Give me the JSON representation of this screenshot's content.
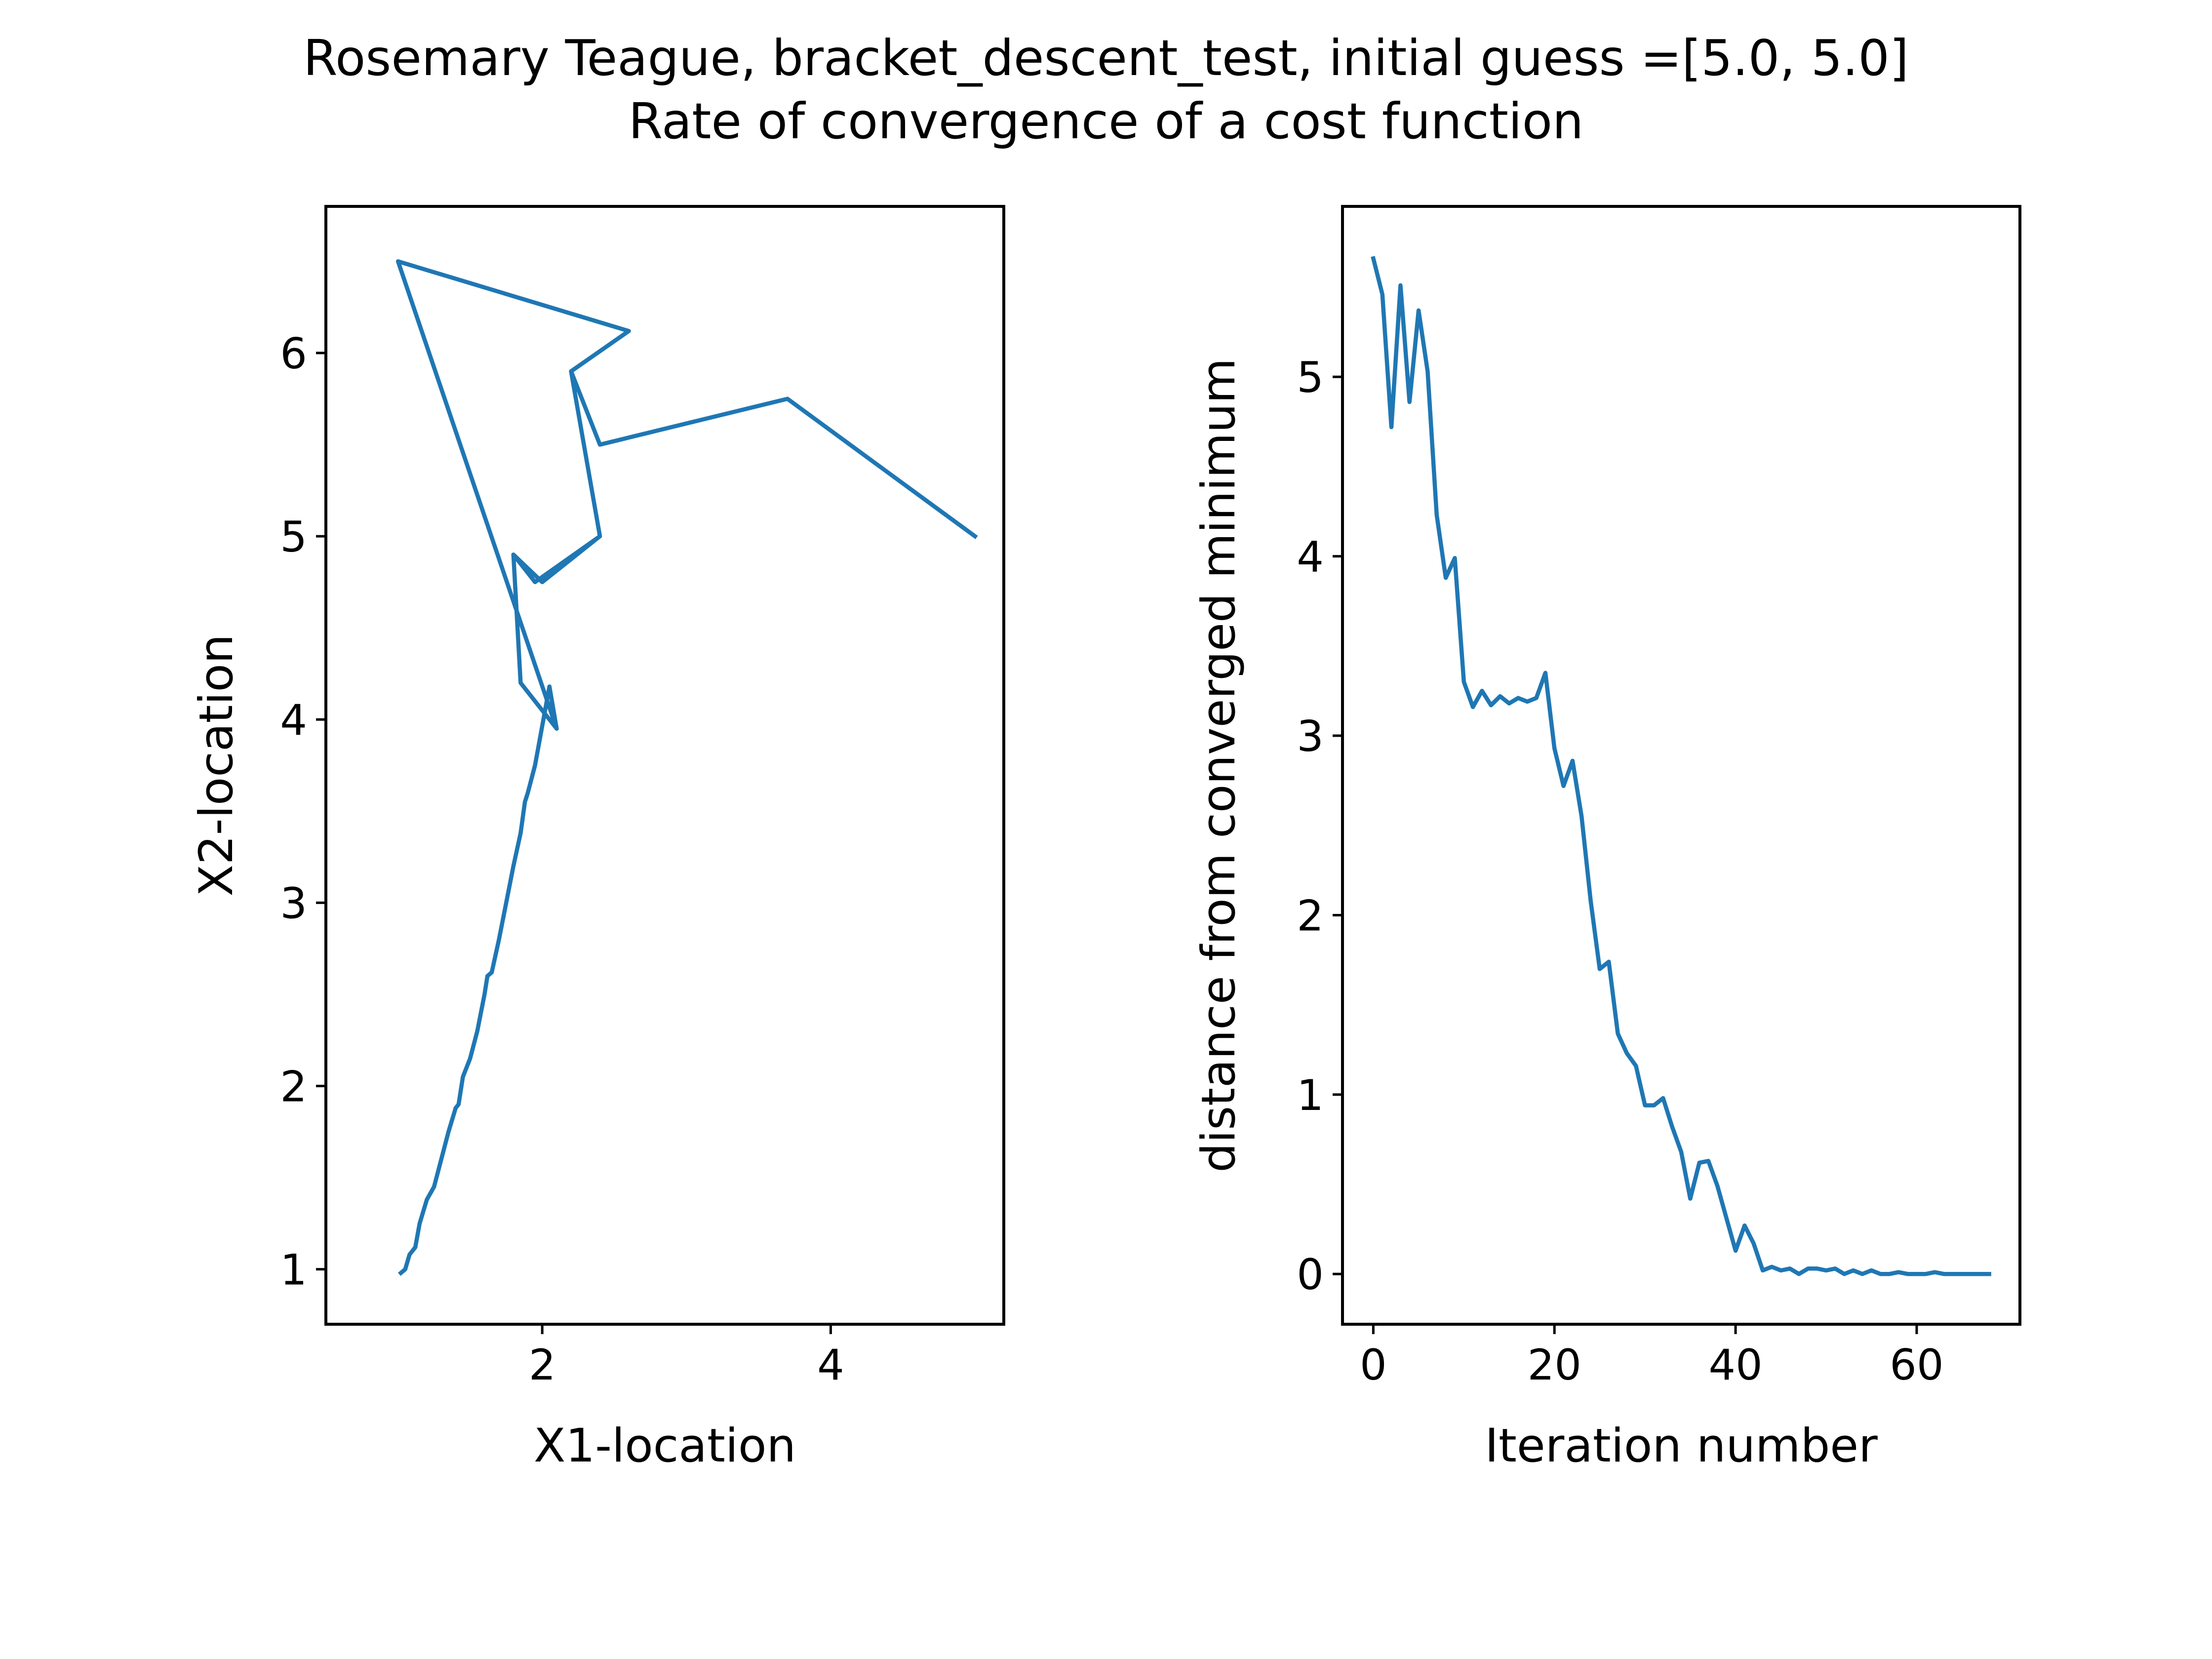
{
  "figure": {
    "title_line1": "Rosemary Teague, bracket_descent_test, initial guess =[5.0, 5.0]",
    "title_line2": "Rate of convergence of a cost function"
  },
  "colors": {
    "line": "#1f77b4",
    "axes": "#000000",
    "background": "#ffffff"
  },
  "chart_data": [
    {
      "type": "line",
      "title": "",
      "xlabel": "X1-location",
      "ylabel": "X2-location",
      "xlim": [
        0.5,
        5.2
      ],
      "ylim": [
        0.7,
        6.8
      ],
      "xticks": [
        2,
        4
      ],
      "yticks": [
        1,
        2,
        3,
        4,
        5,
        6
      ],
      "grid": false,
      "series": [
        {
          "x": [
            5.0,
            3.7,
            2.4,
            2.2,
            2.4,
            1.95,
            1.8,
            1.85,
            2.1,
            1.0,
            2.6,
            2.2,
            2.4,
            2.0,
            1.8,
            1.85,
            2.1,
            2.05,
            1.95,
            1.9,
            1.88,
            1.85,
            1.8,
            1.75,
            1.7,
            1.65,
            1.62,
            1.6,
            1.55,
            1.5,
            1.45,
            1.42,
            1.4,
            1.35,
            1.3,
            1.25,
            1.2,
            1.15,
            1.12,
            1.08,
            1.05,
            1.02
          ],
          "y": [
            5.0,
            5.75,
            5.5,
            5.9,
            5.0,
            4.75,
            4.9,
            4.2,
            3.95,
            6.5,
            6.12,
            5.9,
            5.0,
            4.75,
            4.9,
            4.2,
            3.95,
            4.18,
            3.75,
            3.6,
            3.55,
            3.38,
            3.2,
            3.0,
            2.8,
            2.62,
            2.6,
            2.5,
            2.3,
            2.15,
            2.05,
            1.9,
            1.88,
            1.75,
            1.6,
            1.45,
            1.38,
            1.25,
            1.12,
            1.08,
            1.0,
            0.98
          ]
        }
      ]
    },
    {
      "type": "line",
      "title": "",
      "xlabel": "Iteration number",
      "ylabel": "distance from converged minimum",
      "xlim": [
        -3.4,
        71.4
      ],
      "ylim": [
        -0.28,
        5.95
      ],
      "xticks": [
        0,
        20,
        40,
        60
      ],
      "yticks": [
        0,
        1,
        2,
        3,
        4,
        5
      ],
      "grid": false,
      "series": [
        {
          "x": [
            0,
            1,
            2,
            3,
            4,
            5,
            6,
            7,
            8,
            9,
            10,
            11,
            12,
            13,
            14,
            15,
            16,
            17,
            18,
            19,
            20,
            21,
            22,
            23,
            24,
            25,
            26,
            27,
            28,
            29,
            30,
            31,
            32,
            33,
            34,
            35,
            36,
            37,
            38,
            39,
            40,
            41,
            42,
            43,
            44,
            45,
            46,
            47,
            48,
            49,
            50,
            51,
            52,
            53,
            54,
            55,
            56,
            57,
            58,
            59,
            60,
            61,
            62,
            63,
            64,
            65,
            66,
            67,
            68
          ],
          "y": [
            5.66,
            5.46,
            4.72,
            5.51,
            4.86,
            5.37,
            5.03,
            4.23,
            3.88,
            3.99,
            3.3,
            3.16,
            3.25,
            3.17,
            3.22,
            3.18,
            3.21,
            3.19,
            3.21,
            3.35,
            2.93,
            2.72,
            2.86,
            2.55,
            2.08,
            1.7,
            1.74,
            1.34,
            1.23,
            1.16,
            0.94,
            0.94,
            0.98,
            0.82,
            0.68,
            0.42,
            0.62,
            0.63,
            0.49,
            0.31,
            0.13,
            0.27,
            0.17,
            0.02,
            0.04,
            0.02,
            0.03,
            0.0,
            0.03,
            0.03,
            0.02,
            0.03,
            0.0,
            0.02,
            0.0,
            0.02,
            0.0,
            0.0,
            0.01,
            0.0,
            0.0,
            0.0,
            0.01,
            0.0,
            0.0,
            0.0,
            0.0,
            0.0,
            0.0
          ]
        }
      ]
    }
  ]
}
